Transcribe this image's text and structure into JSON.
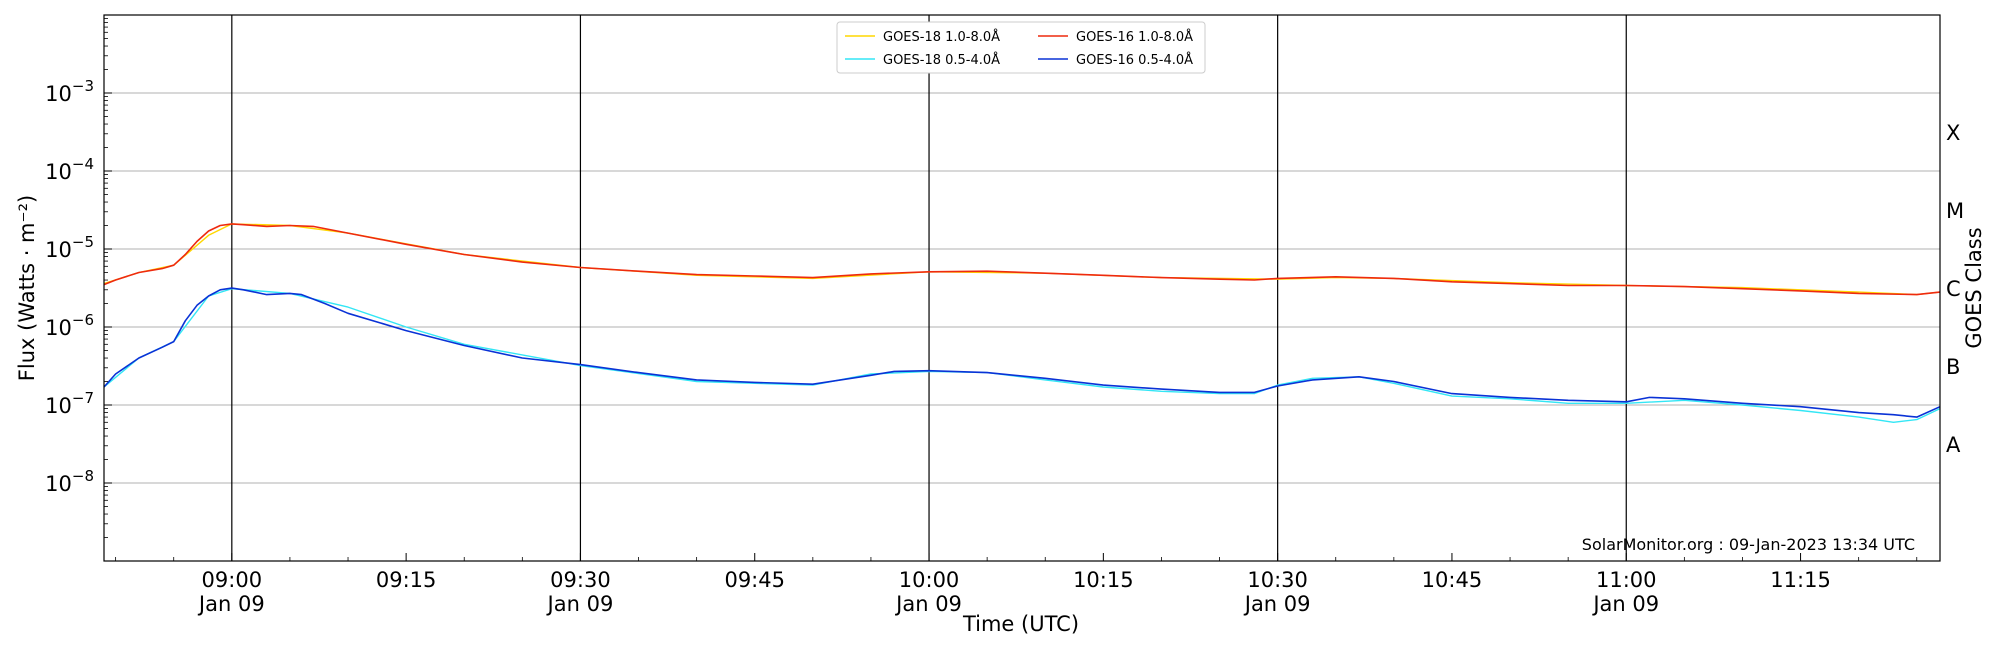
{
  "chart_data": {
    "type": "line",
    "ylabel_html": "Flux (Watts · m⁻²)",
    "xlabel": "Time (UTC)",
    "right_label": "GOES Class",
    "footer": "SolarMonitor.org : 09-Jan-2023 13:34 UTC",
    "xlim": [
      "08:49",
      "11:27"
    ],
    "ylim": [
      1e-09,
      0.01
    ],
    "yscale": "log",
    "grid": "y",
    "legend_position": "top-center",
    "x_ticks": [
      {
        "time": "09:00",
        "line1": "09:00",
        "line2": "Jan 09"
      },
      {
        "time": "09:15",
        "line1": "09:15",
        "line2": ""
      },
      {
        "time": "09:30",
        "line1": "09:30",
        "line2": "Jan 09"
      },
      {
        "time": "09:45",
        "line1": "09:45",
        "line2": ""
      },
      {
        "time": "10:00",
        "line1": "10:00",
        "line2": "Jan 09"
      },
      {
        "time": "10:15",
        "line1": "10:15",
        "line2": ""
      },
      {
        "time": "10:30",
        "line1": "10:30",
        "line2": "Jan 09"
      },
      {
        "time": "10:45",
        "line1": "10:45",
        "line2": ""
      },
      {
        "time": "11:00",
        "line1": "11:00",
        "line2": "Jan 09"
      },
      {
        "time": "11:15",
        "line1": "11:15",
        "line2": ""
      }
    ],
    "vertical_lines": [
      "09:00",
      "09:30",
      "10:00",
      "10:30",
      "11:00"
    ],
    "y_ticks": [
      {
        "exp": -8,
        "base": "10",
        "sup": "−8"
      },
      {
        "exp": -7,
        "base": "10",
        "sup": "−7"
      },
      {
        "exp": -6,
        "base": "10",
        "sup": "−6"
      },
      {
        "exp": -5,
        "base": "10",
        "sup": "−5"
      },
      {
        "exp": -4,
        "base": "10",
        "sup": "−4"
      },
      {
        "exp": -3,
        "base": "10",
        "sup": "−3"
      }
    ],
    "goes_classes": [
      {
        "label": "A",
        "exp": -7.5
      },
      {
        "label": "B",
        "exp": -6.5
      },
      {
        "label": "C",
        "exp": -5.5
      },
      {
        "label": "M",
        "exp": -4.5
      },
      {
        "label": "X",
        "exp": -3.5
      }
    ],
    "series": [
      {
        "name": "GOES-18 1.0-8.0Å",
        "color": "#ffd700",
        "width": 1.4,
        "time": [
          "08:49",
          "08:52",
          "08:55",
          "08:58",
          "09:00",
          "09:05",
          "09:10",
          "09:20",
          "09:30",
          "09:40",
          "09:50",
          "10:00",
          "10:10",
          "10:20",
          "10:30",
          "10:35",
          "10:40",
          "10:50",
          "11:00",
          "11:10",
          "11:20",
          "11:25",
          "11:27"
        ],
        "values": [
          3.6e-06,
          5e-06,
          6.2e-06,
          1.5e-05,
          2.1e-05,
          2e-05,
          1.6e-05,
          8.5e-06,
          5.8e-06,
          4.6e-06,
          4.2e-06,
          5.1e-06,
          4.9e-06,
          4.3e-06,
          4.1e-06,
          4.3e-06,
          4.2e-06,
          3.7e-06,
          3.4e-06,
          3.2e-06,
          2.8e-06,
          2.6e-06,
          2.8e-06
        ]
      },
      {
        "name": "GOES-18 0.5-4.0Å",
        "color": "#33e6f5",
        "width": 1.4,
        "time": [
          "08:49",
          "08:52",
          "08:55",
          "08:58",
          "09:00",
          "09:05",
          "09:10",
          "09:15",
          "09:20",
          "09:30",
          "09:40",
          "09:50",
          "09:55",
          "10:00",
          "10:05",
          "10:10",
          "10:15",
          "10:20",
          "10:25",
          "10:28",
          "10:30",
          "10:33",
          "10:37",
          "10:40",
          "10:45",
          "10:50",
          "10:55",
          "11:00",
          "11:05",
          "11:10",
          "11:15",
          "11:20",
          "11:23",
          "11:25",
          "11:27"
        ],
        "values": [
          1.7e-07,
          4e-07,
          6.5e-07,
          2.5e-06,
          3.1e-06,
          2.7e-06,
          1.8e-06,
          1e-06,
          6e-07,
          3.2e-07,
          2e-07,
          1.8e-07,
          2.5e-07,
          2.7e-07,
          2.6e-07,
          2.1e-07,
          1.7e-07,
          1.5e-07,
          1.4e-07,
          1.4e-07,
          1.8e-07,
          2.2e-07,
          2.3e-07,
          1.9e-07,
          1.3e-07,
          1.2e-07,
          1.05e-07,
          1.05e-07,
          1.15e-07,
          1e-07,
          8.5e-08,
          7e-08,
          6e-08,
          6.5e-08,
          9e-08
        ]
      },
      {
        "name": "GOES-16 1.0-8.0Å",
        "color": "#ee2a0f",
        "width": 1.6,
        "time": [
          "08:49",
          "08:50",
          "08:52",
          "08:54",
          "08:55",
          "08:56",
          "08:57",
          "08:58",
          "08:59",
          "09:00",
          "09:01",
          "09:03",
          "09:05",
          "09:07",
          "09:10",
          "09:15",
          "09:20",
          "09:25",
          "09:30",
          "09:35",
          "09:40",
          "09:45",
          "09:50",
          "09:55",
          "10:00",
          "10:05",
          "10:10",
          "10:15",
          "10:20",
          "10:25",
          "10:28",
          "10:30",
          "10:35",
          "10:40",
          "10:45",
          "10:50",
          "10:55",
          "11:00",
          "11:05",
          "11:10",
          "11:15",
          "11:20",
          "11:25",
          "11:27"
        ],
        "values": [
          3.5e-06,
          4e-06,
          5e-06,
          5.6e-06,
          6.2e-06,
          8.5e-06,
          1.25e-05,
          1.7e-05,
          2e-05,
          2.1e-05,
          2.05e-05,
          1.95e-05,
          2e-05,
          1.95e-05,
          1.6e-05,
          1.15e-05,
          8.5e-06,
          6.8e-06,
          5.8e-06,
          5.2e-06,
          4.7e-06,
          4.5e-06,
          4.3e-06,
          4.8e-06,
          5.1e-06,
          5.2e-06,
          4.9e-06,
          4.6e-06,
          4.3e-06,
          4.1e-06,
          4e-06,
          4.2e-06,
          4.4e-06,
          4.2e-06,
          3.8e-06,
          3.6e-06,
          3.4e-06,
          3.4e-06,
          3.3e-06,
          3.1e-06,
          2.9e-06,
          2.7e-06,
          2.6e-06,
          2.8e-06
        ]
      },
      {
        "name": "GOES-16 0.5-4.0Å",
        "color": "#0a32d6",
        "width": 1.6,
        "time": [
          "08:49",
          "08:50",
          "08:52",
          "08:54",
          "08:55",
          "08:56",
          "08:57",
          "08:58",
          "08:59",
          "09:00",
          "09:01",
          "09:03",
          "09:05",
          "09:06",
          "09:08",
          "09:10",
          "09:15",
          "09:20",
          "09:25",
          "09:30",
          "09:35",
          "09:40",
          "09:45",
          "09:50",
          "09:55",
          "09:57",
          "10:00",
          "10:05",
          "10:10",
          "10:15",
          "10:20",
          "10:25",
          "10:28",
          "10:30",
          "10:33",
          "10:37",
          "10:40",
          "10:45",
          "10:50",
          "10:55",
          "11:00",
          "11:02",
          "11:05",
          "11:10",
          "11:15",
          "11:20",
          "11:23",
          "11:25",
          "11:27"
        ],
        "values": [
          1.7e-07,
          2.5e-07,
          4e-07,
          5.5e-07,
          6.5e-07,
          1.2e-06,
          1.9e-06,
          2.5e-06,
          3e-06,
          3.15e-06,
          3e-06,
          2.6e-06,
          2.7e-06,
          2.6e-06,
          2e-06,
          1.5e-06,
          9e-07,
          5.8e-07,
          4e-07,
          3.3e-07,
          2.6e-07,
          2.1e-07,
          1.95e-07,
          1.85e-07,
          2.4e-07,
          2.7e-07,
          2.75e-07,
          2.6e-07,
          2.2e-07,
          1.8e-07,
          1.6e-07,
          1.45e-07,
          1.45e-07,
          1.75e-07,
          2.1e-07,
          2.3e-07,
          2e-07,
          1.4e-07,
          1.25e-07,
          1.15e-07,
          1.1e-07,
          1.25e-07,
          1.2e-07,
          1.05e-07,
          9.5e-08,
          8e-08,
          7.5e-08,
          7e-08,
          9.5e-08
        ]
      }
    ]
  }
}
